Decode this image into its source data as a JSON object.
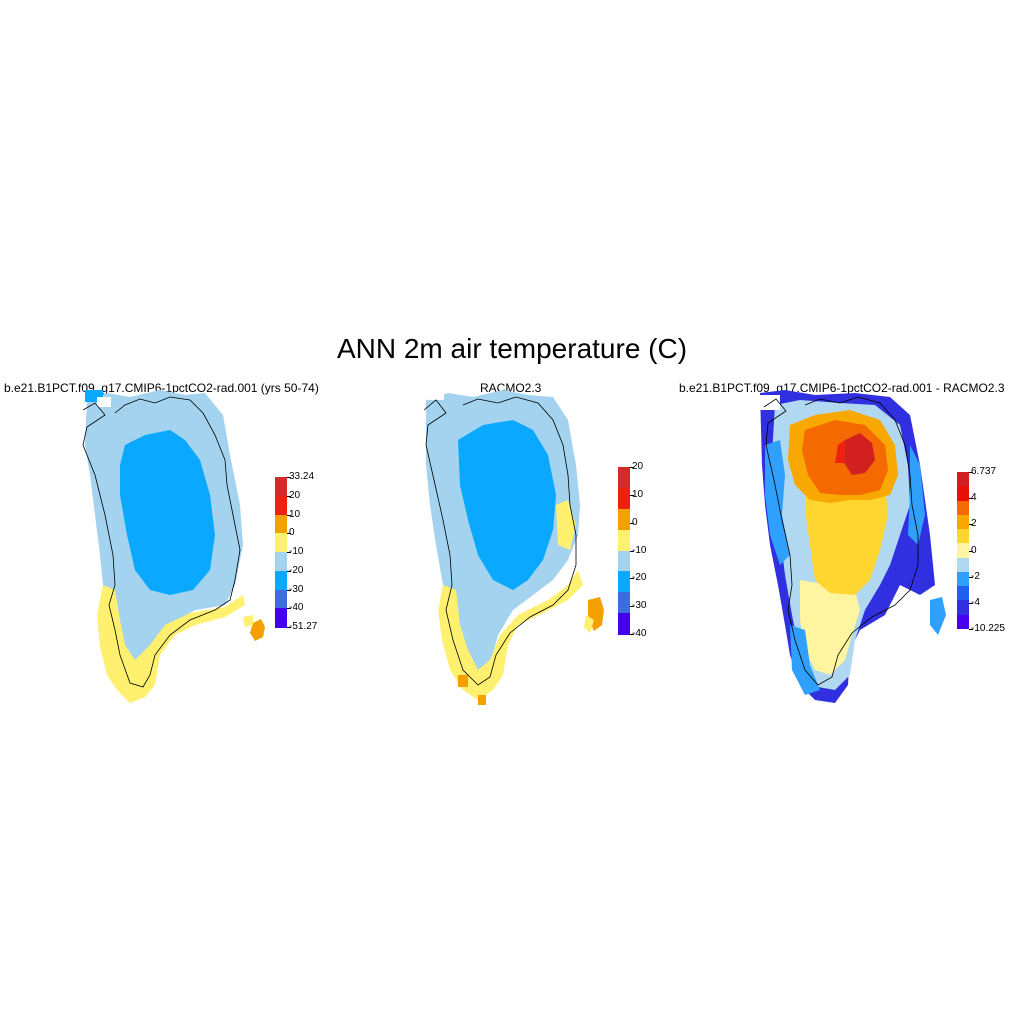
{
  "figure": {
    "title": "ANN 2m air temperature (C)"
  },
  "panels": [
    {
      "title": "b.e21.B1PCT.f09_g17.CMIP6-1pctCO2-rad.001 (yrs 50-74)",
      "colorbar": {
        "labels": [
          "33.24",
          "20",
          "10",
          "0",
          "-10",
          "-20",
          "-30",
          "-40",
          "-51.27"
        ],
        "colors": [
          "#d32b2b",
          "#f02010",
          "#f4a000",
          "#fff070",
          "#a3d3ef",
          "#0aa8ff",
          "#3c6de0",
          "#4200ef"
        ]
      }
    },
    {
      "title": "RACMO2.3",
      "colorbar": {
        "labels": [
          "20",
          "10",
          "0",
          "-10",
          "-20",
          "-30",
          "-40"
        ],
        "colors": [
          "#d32b2b",
          "#f02010",
          "#f4a000",
          "#fff070",
          "#a3d3ef",
          "#0aa8ff",
          "#3c6de0",
          "#4200ef"
        ]
      }
    },
    {
      "title": "b.e21.B1PCT.f09_g17.CMIP6-1pctCO2-rad.001 - RACMO2.3",
      "colorbar": {
        "labels": [
          "6.737",
          "4",
          "2",
          "0",
          "-2",
          "-4",
          "-10.225"
        ],
        "colors": [
          "#d22020",
          "#e81000",
          "#f46a00",
          "#f8a800",
          "#ffd530",
          "#fff5a0",
          "#b0d8f0",
          "#30a0ff",
          "#2060f0",
          "#3030e0",
          "#4a00f0"
        ]
      }
    }
  ]
}
